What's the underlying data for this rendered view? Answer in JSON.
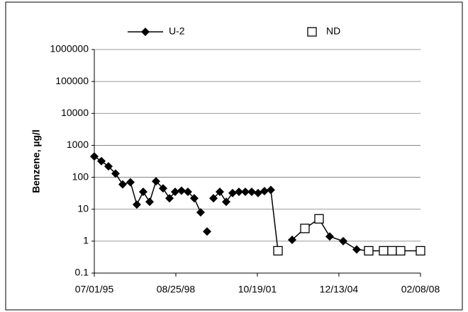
{
  "chart_data": {
    "type": "line",
    "y_label": "Benzene, µg/l",
    "log_y": true,
    "grid": true,
    "legend": "top",
    "x": [
      "07/01/95",
      "10/09/95",
      "01/17/96",
      "04/26/96",
      "08/04/96",
      "11/22/96",
      "02/20/97",
      "05/21/97",
      "08/20/97",
      "11/18/97",
      "02/26/98",
      "05/27/98",
      "08/15/98",
      "11/13/98",
      "02/11/99",
      "05/12/99",
      "08/10/99",
      "09/29/99",
      "11/09/99",
      "12/19/99",
      "02/07/00",
      "05/07/00",
      "08/05/00",
      "11/03/00",
      "02/01/01",
      "05/02/01",
      "07/31/01",
      "10/29/01",
      "01/27/02",
      "04/27/02",
      "08/06/02",
      "11/14/02",
      "02/22/03",
      "08/21/03",
      "03/08/04",
      "08/05/04",
      "02/12/05",
      "08/21/05",
      "02/07/06",
      "09/05/06",
      "01/03/07",
      "05/03/07",
      "02/08/08"
    ],
    "series": [
      {
        "name": "U-2",
        "color": "#000000",
        "marker": "diamond",
        "values": [
          450,
          320,
          220,
          130,
          60,
          70,
          14,
          35,
          17,
          75,
          45,
          22,
          35,
          38,
          35,
          22,
          8,
          null,
          2,
          null,
          22,
          35,
          17,
          32,
          35,
          35,
          35,
          32,
          37,
          40,
          null,
          null,
          1.1,
          null,
          null,
          1.4,
          1.0,
          0.55,
          null,
          null,
          null,
          null,
          null
        ]
      },
      {
        "name": "ND",
        "color": "#000000",
        "marker": "square",
        "values": [
          null,
          null,
          null,
          null,
          null,
          null,
          null,
          null,
          null,
          null,
          null,
          null,
          null,
          null,
          null,
          null,
          null,
          null,
          null,
          null,
          null,
          null,
          null,
          null,
          null,
          null,
          null,
          null,
          null,
          null,
          0.5,
          null,
          null,
          2.5,
          5,
          null,
          null,
          null,
          0.5,
          0.5,
          0.5,
          0.5,
          0.5
        ]
      }
    ],
    "xlim": [
      "07/01/95",
      "02/08/08"
    ],
    "xticks": [
      "07/01/95",
      "08/25/98",
      "10/19/01",
      "12/13/04",
      "02/08/08"
    ],
    "ylim": [
      0.1,
      1000000
    ],
    "yticks": [
      0.1,
      1,
      10,
      100,
      1000,
      10000,
      100000,
      1000000
    ]
  }
}
